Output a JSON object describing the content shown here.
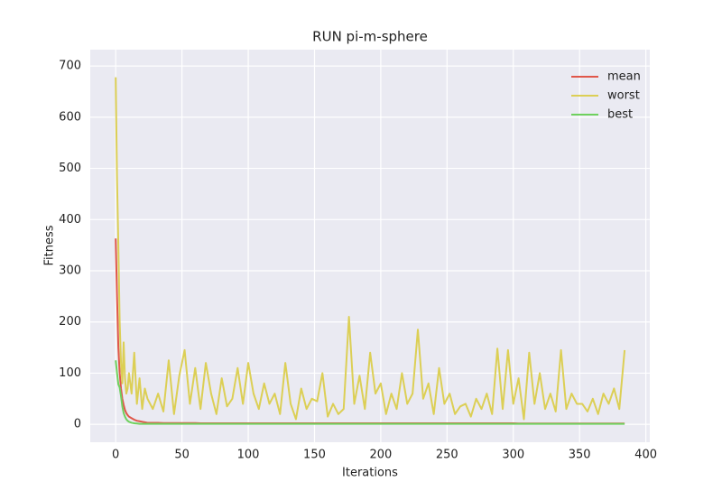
{
  "chart_data": {
    "type": "line",
    "title": "RUN pi-m-sphere",
    "x_label": "Iterations",
    "y_label": "Fitness",
    "x": [
      0,
      1,
      2,
      3,
      4,
      5,
      6,
      7,
      8,
      9,
      10,
      12,
      14,
      16,
      18,
      20,
      22,
      24,
      28,
      32,
      36,
      40,
      44,
      48,
      52,
      56,
      60,
      64,
      68,
      72,
      76,
      80,
      84,
      88,
      92,
      96,
      100,
      104,
      108,
      112,
      116,
      120,
      124,
      128,
      132,
      136,
      140,
      144,
      148,
      152,
      156,
      160,
      164,
      168,
      172,
      176,
      180,
      184,
      188,
      192,
      196,
      200,
      204,
      208,
      212,
      216,
      220,
      224,
      228,
      232,
      236,
      240,
      244,
      248,
      252,
      256,
      260,
      264,
      268,
      272,
      276,
      280,
      284,
      288,
      292,
      296,
      300,
      304,
      308,
      312,
      316,
      320,
      324,
      328,
      332,
      336,
      340,
      344,
      348,
      352,
      356,
      360,
      364,
      368,
      372,
      376,
      380,
      384
    ],
    "series": [
      {
        "name": "mean",
        "color": "#e0574a",
        "values": [
          363,
          250,
          150,
          100,
          70,
          50,
          38,
          28,
          22,
          18,
          15,
          12,
          9,
          7,
          6,
          5,
          4,
          3,
          3,
          3,
          2.5,
          2.5,
          2.5,
          2.5,
          2.5,
          2.5,
          2.5,
          2,
          2,
          2,
          2,
          2,
          2,
          2,
          2,
          2,
          2,
          2,
          2,
          2,
          2,
          2,
          2,
          2,
          2,
          2,
          2,
          2,
          2,
          2,
          2,
          2,
          2,
          2,
          2,
          2,
          2,
          2,
          2,
          2,
          2,
          2,
          2,
          2,
          2,
          2,
          2,
          2,
          2,
          2,
          2,
          2,
          2,
          2,
          2,
          2,
          2,
          2,
          2,
          2,
          2,
          2,
          2,
          2,
          2,
          2,
          2,
          1.5,
          1.5,
          1.5,
          1.5,
          1.5,
          1.5,
          1.5,
          1.5,
          1.5,
          1.5,
          1.5,
          1.5,
          1.5,
          1.5,
          1.5,
          1.5,
          1.5,
          1.5,
          1.5,
          1.5,
          1.5
        ]
      },
      {
        "name": "worst",
        "color": "#dccf55",
        "values": [
          678,
          480,
          350,
          200,
          120,
          80,
          160,
          90,
          60,
          70,
          100,
          60,
          140,
          40,
          90,
          30,
          70,
          50,
          30,
          60,
          25,
          125,
          20,
          95,
          145,
          40,
          110,
          30,
          120,
          60,
          20,
          90,
          35,
          50,
          110,
          40,
          120,
          60,
          30,
          80,
          40,
          60,
          20,
          120,
          40,
          10,
          70,
          30,
          50,
          45,
          100,
          15,
          40,
          20,
          30,
          210,
          40,
          95,
          30,
          140,
          60,
          80,
          20,
          60,
          30,
          100,
          40,
          60,
          185,
          50,
          80,
          20,
          110,
          40,
          60,
          20,
          35,
          40,
          15,
          50,
          30,
          60,
          20,
          148,
          30,
          145,
          40,
          90,
          10,
          140,
          40,
          100,
          30,
          60,
          25,
          145,
          30,
          60,
          40,
          40,
          25,
          50,
          20,
          60,
          40,
          70,
          30,
          145
        ]
      },
      {
        "name": "best",
        "color": "#6fd15e",
        "values": [
          125,
          100,
          78,
          72,
          55,
          35,
          22,
          15,
          10,
          7,
          5,
          3,
          2,
          1.5,
          1,
          1,
          1,
          1,
          1,
          1,
          1,
          1,
          1,
          1,
          1,
          1,
          1,
          1,
          1,
          1,
          1,
          1,
          1,
          1,
          1,
          1,
          1,
          1,
          1,
          1,
          1,
          1,
          1,
          1,
          1,
          1,
          1,
          1,
          1,
          1,
          1,
          1,
          1,
          1,
          1,
          1,
          1,
          1,
          1,
          1,
          1,
          1,
          1,
          1,
          1,
          1,
          1,
          1,
          1,
          1,
          1,
          1,
          1,
          1,
          1,
          1,
          1,
          1,
          1,
          1,
          1,
          1,
          1,
          1,
          1,
          1,
          1,
          1,
          1,
          1,
          1,
          1,
          1,
          1,
          1,
          1,
          1,
          1,
          1,
          1,
          1,
          1,
          1,
          1,
          1,
          1,
          1,
          1
        ]
      }
    ],
    "xlim": [
      -19.2,
      403
    ],
    "ylim": [
      -35,
      732
    ],
    "xticks": [
      0,
      50,
      100,
      150,
      200,
      250,
      300,
      350,
      400
    ],
    "yticks": [
      0,
      100,
      200,
      300,
      400,
      500,
      600,
      700
    ],
    "grid": true,
    "legend": "upper right"
  }
}
